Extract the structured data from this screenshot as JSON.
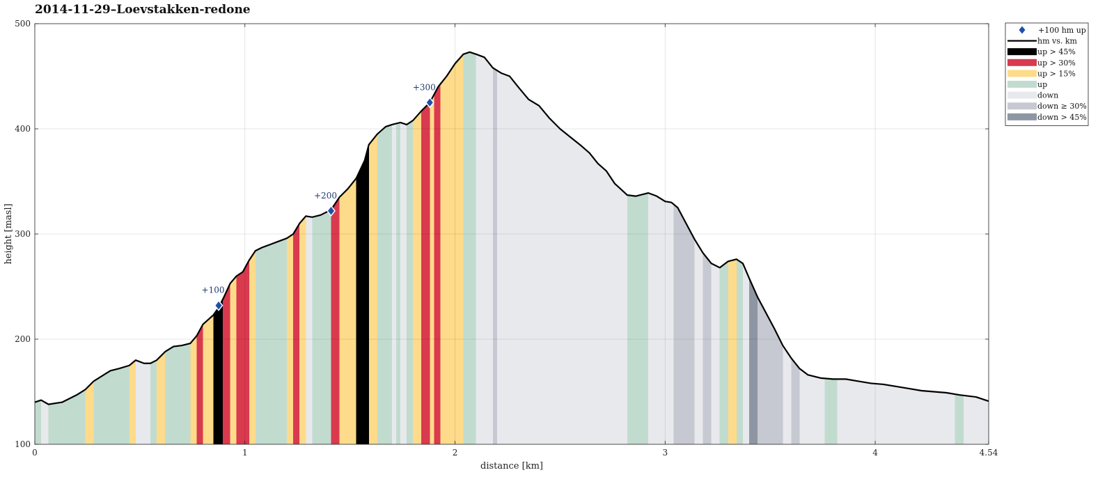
{
  "chart_data": {
    "type": "area",
    "title": "2014-11-29–Loevstakken-redone",
    "xlabel": "distance [km]",
    "ylabel": "height [masl]",
    "xlim": [
      0,
      4.54
    ],
    "ylim": [
      100,
      500
    ],
    "xticks": [
      0,
      1,
      2,
      3,
      4,
      4.54
    ],
    "xtick_labels": [
      "0",
      "1",
      "2",
      "3",
      "4",
      "4.54"
    ],
    "yticks": [
      100,
      200,
      300,
      400,
      500
    ],
    "grid": true,
    "legend_position": "outside top-right",
    "colors": {
      "up45": "#000000",
      "up30": "#d93a4e",
      "up15": "#fddb8a",
      "up": "#c1dccf",
      "down": "#e8e9ed",
      "down30": "#c6c9d1",
      "down45": "#8e96a3",
      "line": "#000000",
      "marker": "#1f4fa8"
    },
    "legend": [
      {
        "key": "marker",
        "label": "+100 hm up"
      },
      {
        "key": "line",
        "label": "hm vs. km"
      },
      {
        "key": "up45",
        "label": "up > 45%"
      },
      {
        "key": "up30",
        "label": "up > 30%"
      },
      {
        "key": "up15",
        "label": "up > 15%"
      },
      {
        "key": "up",
        "label": "up"
      },
      {
        "key": "down",
        "label": "down"
      },
      {
        "key": "down30",
        "label": "down ≥ 30%"
      },
      {
        "key": "down45",
        "label": "down > 45%"
      }
    ],
    "profile": [
      [
        0.0,
        140
      ],
      [
        0.03,
        142
      ],
      [
        0.065,
        138
      ],
      [
        0.13,
        140
      ],
      [
        0.2,
        147
      ],
      [
        0.24,
        152
      ],
      [
        0.28,
        160
      ],
      [
        0.32,
        165
      ],
      [
        0.36,
        170
      ],
      [
        0.4,
        172
      ],
      [
        0.45,
        175
      ],
      [
        0.48,
        180
      ],
      [
        0.52,
        177
      ],
      [
        0.55,
        177
      ],
      [
        0.58,
        180
      ],
      [
        0.62,
        188
      ],
      [
        0.66,
        193
      ],
      [
        0.7,
        194
      ],
      [
        0.74,
        196
      ],
      [
        0.77,
        203
      ],
      [
        0.8,
        214
      ],
      [
        0.85,
        223
      ],
      [
        0.875,
        230
      ],
      [
        0.9,
        240
      ],
      [
        0.93,
        253
      ],
      [
        0.96,
        260
      ],
      [
        0.99,
        264
      ],
      [
        1.02,
        275
      ],
      [
        1.05,
        284
      ],
      [
        1.08,
        287
      ],
      [
        1.12,
        290
      ],
      [
        1.16,
        293
      ],
      [
        1.2,
        296
      ],
      [
        1.23,
        300
      ],
      [
        1.26,
        310
      ],
      [
        1.29,
        317
      ],
      [
        1.32,
        316
      ],
      [
        1.36,
        318
      ],
      [
        1.41,
        323
      ],
      [
        1.45,
        335
      ],
      [
        1.49,
        343
      ],
      [
        1.53,
        353
      ],
      [
        1.57,
        370
      ],
      [
        1.59,
        385
      ],
      [
        1.63,
        395
      ],
      [
        1.67,
        402
      ],
      [
        1.7,
        404
      ],
      [
        1.74,
        406
      ],
      [
        1.77,
        404
      ],
      [
        1.8,
        408
      ],
      [
        1.84,
        417
      ],
      [
        1.88,
        425
      ],
      [
        1.92,
        440
      ],
      [
        1.96,
        450
      ],
      [
        2.0,
        462
      ],
      [
        2.04,
        471
      ],
      [
        2.07,
        473
      ],
      [
        2.1,
        471
      ],
      [
        2.14,
        468
      ],
      [
        2.18,
        458
      ],
      [
        2.22,
        453
      ],
      [
        2.26,
        450
      ],
      [
        2.3,
        440
      ],
      [
        2.35,
        428
      ],
      [
        2.4,
        422
      ],
      [
        2.45,
        410
      ],
      [
        2.5,
        400
      ],
      [
        2.55,
        392
      ],
      [
        2.6,
        384
      ],
      [
        2.64,
        377
      ],
      [
        2.68,
        367
      ],
      [
        2.72,
        360
      ],
      [
        2.76,
        348
      ],
      [
        2.82,
        337
      ],
      [
        2.86,
        336
      ],
      [
        2.92,
        339
      ],
      [
        2.96,
        336
      ],
      [
        3.0,
        331
      ],
      [
        3.03,
        330
      ],
      [
        3.06,
        325
      ],
      [
        3.1,
        310
      ],
      [
        3.14,
        295
      ],
      [
        3.18,
        282
      ],
      [
        3.22,
        272
      ],
      [
        3.26,
        268
      ],
      [
        3.3,
        274
      ],
      [
        3.34,
        276
      ],
      [
        3.37,
        272
      ],
      [
        3.4,
        258
      ],
      [
        3.44,
        240
      ],
      [
        3.48,
        225
      ],
      [
        3.52,
        210
      ],
      [
        3.56,
        194
      ],
      [
        3.6,
        182
      ],
      [
        3.64,
        172
      ],
      [
        3.68,
        166
      ],
      [
        3.74,
        163
      ],
      [
        3.8,
        162
      ],
      [
        3.86,
        162
      ],
      [
        3.92,
        160
      ],
      [
        3.98,
        158
      ],
      [
        4.04,
        157
      ],
      [
        4.1,
        155
      ],
      [
        4.16,
        153
      ],
      [
        4.22,
        151
      ],
      [
        4.28,
        150
      ],
      [
        4.34,
        149
      ],
      [
        4.4,
        147
      ],
      [
        4.44,
        146
      ],
      [
        4.48,
        145
      ],
      [
        4.54,
        141
      ]
    ],
    "segments": [
      [
        0.0,
        0.03,
        "up"
      ],
      [
        0.03,
        0.065,
        "down"
      ],
      [
        0.065,
        0.24,
        "up"
      ],
      [
        0.24,
        0.28,
        "up15"
      ],
      [
        0.28,
        0.45,
        "up"
      ],
      [
        0.45,
        0.48,
        "up15"
      ],
      [
        0.48,
        0.55,
        "down"
      ],
      [
        0.55,
        0.58,
        "up"
      ],
      [
        0.58,
        0.62,
        "up15"
      ],
      [
        0.62,
        0.74,
        "up"
      ],
      [
        0.74,
        0.77,
        "up15"
      ],
      [
        0.77,
        0.8,
        "up30"
      ],
      [
        0.8,
        0.85,
        "up15"
      ],
      [
        0.85,
        0.895,
        "up45"
      ],
      [
        0.895,
        0.93,
        "up30"
      ],
      [
        0.93,
        0.96,
        "up15"
      ],
      [
        0.96,
        1.02,
        "up30"
      ],
      [
        1.02,
        1.05,
        "up15"
      ],
      [
        1.05,
        1.2,
        "up"
      ],
      [
        1.2,
        1.23,
        "up15"
      ],
      [
        1.23,
        1.26,
        "up30"
      ],
      [
        1.26,
        1.29,
        "up15"
      ],
      [
        1.29,
        1.32,
        "down"
      ],
      [
        1.32,
        1.41,
        "up"
      ],
      [
        1.41,
        1.45,
        "up30"
      ],
      [
        1.45,
        1.53,
        "up15"
      ],
      [
        1.53,
        1.59,
        "up45"
      ],
      [
        1.59,
        1.63,
        "up15"
      ],
      [
        1.63,
        1.7,
        "up"
      ],
      [
        1.7,
        1.72,
        "down"
      ],
      [
        1.72,
        1.74,
        "up"
      ],
      [
        1.74,
        1.77,
        "down"
      ],
      [
        1.77,
        1.8,
        "up"
      ],
      [
        1.8,
        1.84,
        "up15"
      ],
      [
        1.84,
        1.88,
        "up30"
      ],
      [
        1.88,
        1.9,
        "up15"
      ],
      [
        1.9,
        1.93,
        "up30"
      ],
      [
        1.93,
        2.04,
        "up15"
      ],
      [
        2.04,
        2.1,
        "up"
      ],
      [
        2.1,
        2.18,
        "down"
      ],
      [
        2.18,
        2.2,
        "down30"
      ],
      [
        2.2,
        2.82,
        "down"
      ],
      [
        2.82,
        2.92,
        "up"
      ],
      [
        2.92,
        3.04,
        "down"
      ],
      [
        3.04,
        3.14,
        "down30"
      ],
      [
        3.14,
        3.18,
        "down"
      ],
      [
        3.18,
        3.22,
        "down30"
      ],
      [
        3.22,
        3.26,
        "down"
      ],
      [
        3.26,
        3.3,
        "up"
      ],
      [
        3.3,
        3.34,
        "up15"
      ],
      [
        3.34,
        3.37,
        "up"
      ],
      [
        3.37,
        3.4,
        "down"
      ],
      [
        3.4,
        3.44,
        "down45"
      ],
      [
        3.44,
        3.56,
        "down30"
      ],
      [
        3.56,
        3.6,
        "down"
      ],
      [
        3.6,
        3.64,
        "down30"
      ],
      [
        3.64,
        3.76,
        "down"
      ],
      [
        3.76,
        3.82,
        "up"
      ],
      [
        3.82,
        4.38,
        "down"
      ],
      [
        4.38,
        4.42,
        "up"
      ],
      [
        4.42,
        4.54,
        "down"
      ]
    ],
    "markers": [
      {
        "x": 0.875,
        "y": 232,
        "label": "+100"
      },
      {
        "x": 1.41,
        "y": 322,
        "label": "+200"
      },
      {
        "x": 1.88,
        "y": 425,
        "label": "+300"
      }
    ]
  }
}
